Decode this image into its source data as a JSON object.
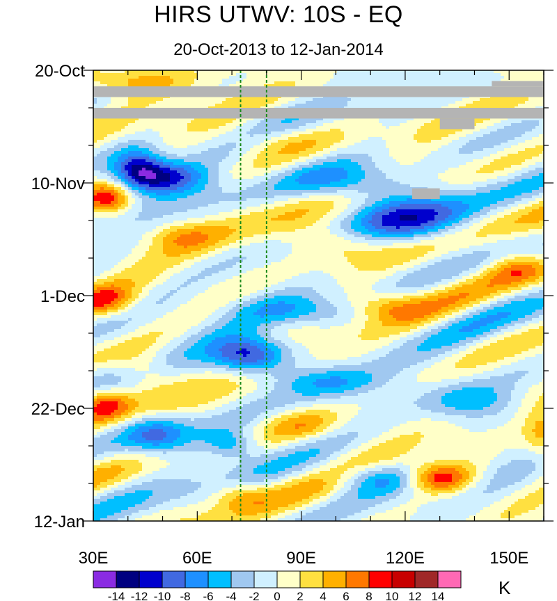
{
  "chart_data": {
    "type": "heatmap",
    "title": "HIRS UTWV: 10S - EQ",
    "subtitle": "20-Oct-2013 to 12-Jan-2014",
    "x_range": [
      30,
      160
    ],
    "x_ticks": [
      {
        "value": 30,
        "label": "30E"
      },
      {
        "value": 60,
        "label": "60E"
      },
      {
        "value": 90,
        "label": "90E"
      },
      {
        "value": 120,
        "label": "120E"
      },
      {
        "value": 150,
        "label": "150E"
      }
    ],
    "y_range_days": [
      0,
      84
    ],
    "y_ticks": [
      {
        "value": 0,
        "label": "20-Oct"
      },
      {
        "value": 21,
        "label": "10-Nov"
      },
      {
        "value": 42,
        "label": "1-Dec"
      },
      {
        "value": 63,
        "label": "22-Dec"
      },
      {
        "value": 84,
        "label": "12-Jan"
      }
    ],
    "reference_lines_lon": [
      72.5,
      80
    ],
    "missing_data_bands": [
      {
        "lon_from": 30,
        "lon_to": 160,
        "day_from": 3,
        "day_to": 5
      },
      {
        "lon_from": 30,
        "lon_to": 160,
        "day_from": 7,
        "day_to": 9
      },
      {
        "lon_from": 145,
        "lon_to": 160,
        "day_from": 2,
        "day_to": 3
      },
      {
        "lon_from": 130,
        "lon_to": 140,
        "day_from": 9,
        "day_to": 11
      },
      {
        "lon_from": 122,
        "lon_to": 130,
        "day_from": 22,
        "day_to": 24
      }
    ],
    "contour_levels": [
      -14,
      -12,
      -10,
      -8,
      -6,
      -4,
      -2,
      0,
      2,
      4,
      6,
      8,
      10,
      12,
      14
    ],
    "colorbar_labels": [
      "-14",
      "-12",
      "-10",
      "-8",
      "-6",
      "-4",
      "-2",
      "0",
      "2",
      "4",
      "6",
      "8",
      "10",
      "12",
      "14"
    ],
    "colors": [
      "#8a2be2",
      "#000080",
      "#0000cd",
      "#4169e1",
      "#1e90ff",
      "#00bfff",
      "#a0c8f0",
      "#d0f0ff",
      "#ffffc8",
      "#ffe040",
      "#ffb000",
      "#ff7800",
      "#ff0000",
      "#c80000",
      "#a02828",
      "#ff69b4"
    ],
    "missing_color": "#b4b4b4",
    "units": "K",
    "anomaly_features": [
      {
        "lon": 43,
        "day": 18,
        "value": -9,
        "spread_lon": 5,
        "spread_day": 2.5
      },
      {
        "lon": 50,
        "day": 20,
        "value": -11,
        "spread_lon": 9,
        "spread_day": 2.2
      },
      {
        "lon": 105,
        "day": 21,
        "value": -7,
        "spread_lon": 12,
        "spread_day": 2.5
      },
      {
        "lon": 122,
        "day": 28,
        "value": -8,
        "spread_lon": 12,
        "spread_day": 3
      },
      {
        "lon": 75,
        "day": 53,
        "value": -12,
        "spread_lon": 8,
        "spread_day": 2.5
      },
      {
        "lon": 90,
        "day": 45,
        "value": -5,
        "spread_lon": 12,
        "spread_day": 2
      },
      {
        "lon": 48,
        "day": 68,
        "value": -8,
        "spread_lon": 7,
        "spread_day": 2.5
      },
      {
        "lon": 70,
        "day": 70,
        "value": -6,
        "spread_lon": 6,
        "spread_day": 2
      },
      {
        "lon": 112,
        "day": 76,
        "value": -6,
        "spread_lon": 10,
        "spread_day": 2
      },
      {
        "lon": 140,
        "day": 62,
        "value": -6,
        "spread_lon": 10,
        "spread_day": 2.5
      },
      {
        "lon": 98,
        "day": 58,
        "value": -5,
        "spread_lon": 10,
        "spread_day": 2
      },
      {
        "lon": 34,
        "day": 24,
        "value": 9,
        "spread_lon": 5,
        "spread_day": 2
      },
      {
        "lon": 33,
        "day": 62,
        "value": 8,
        "spread_lon": 5,
        "spread_day": 2
      },
      {
        "lon": 34,
        "day": 43,
        "value": 6,
        "spread_lon": 6,
        "spread_day": 2
      },
      {
        "lon": 130,
        "day": 76,
        "value": 10,
        "spread_lon": 7,
        "spread_day": 2
      },
      {
        "lon": 100,
        "day": 32,
        "value": 5,
        "spread_lon": 10,
        "spread_day": 2.5
      },
      {
        "lon": 40,
        "day": 2,
        "value": 6,
        "spread_lon": 12,
        "spread_day": 2
      },
      {
        "lon": 115,
        "day": 44,
        "value": 5,
        "spread_lon": 8,
        "spread_day": 2
      },
      {
        "lon": 56,
        "day": 31,
        "value": 4,
        "spread_lon": 7,
        "spread_day": 2
      },
      {
        "lon": 160,
        "day": 68,
        "value": 6,
        "spread_lon": 4,
        "spread_day": 3
      },
      {
        "lon": 152,
        "day": 37,
        "value": 5,
        "spread_lon": 6,
        "spread_day": 2
      },
      {
        "lon": 90,
        "day": 66,
        "value": 4,
        "spread_lon": 8,
        "spread_day": 2
      },
      {
        "lon": 72,
        "day": 79,
        "value": 4,
        "spread_lon": 6,
        "spread_day": 2
      },
      {
        "lon": 45,
        "day": 56,
        "value": 4,
        "spread_lon": 6,
        "spread_day": 2.5
      },
      {
        "lon": 80,
        "day": 13,
        "value": 3,
        "spread_lon": 10,
        "spread_day": 2
      }
    ]
  }
}
